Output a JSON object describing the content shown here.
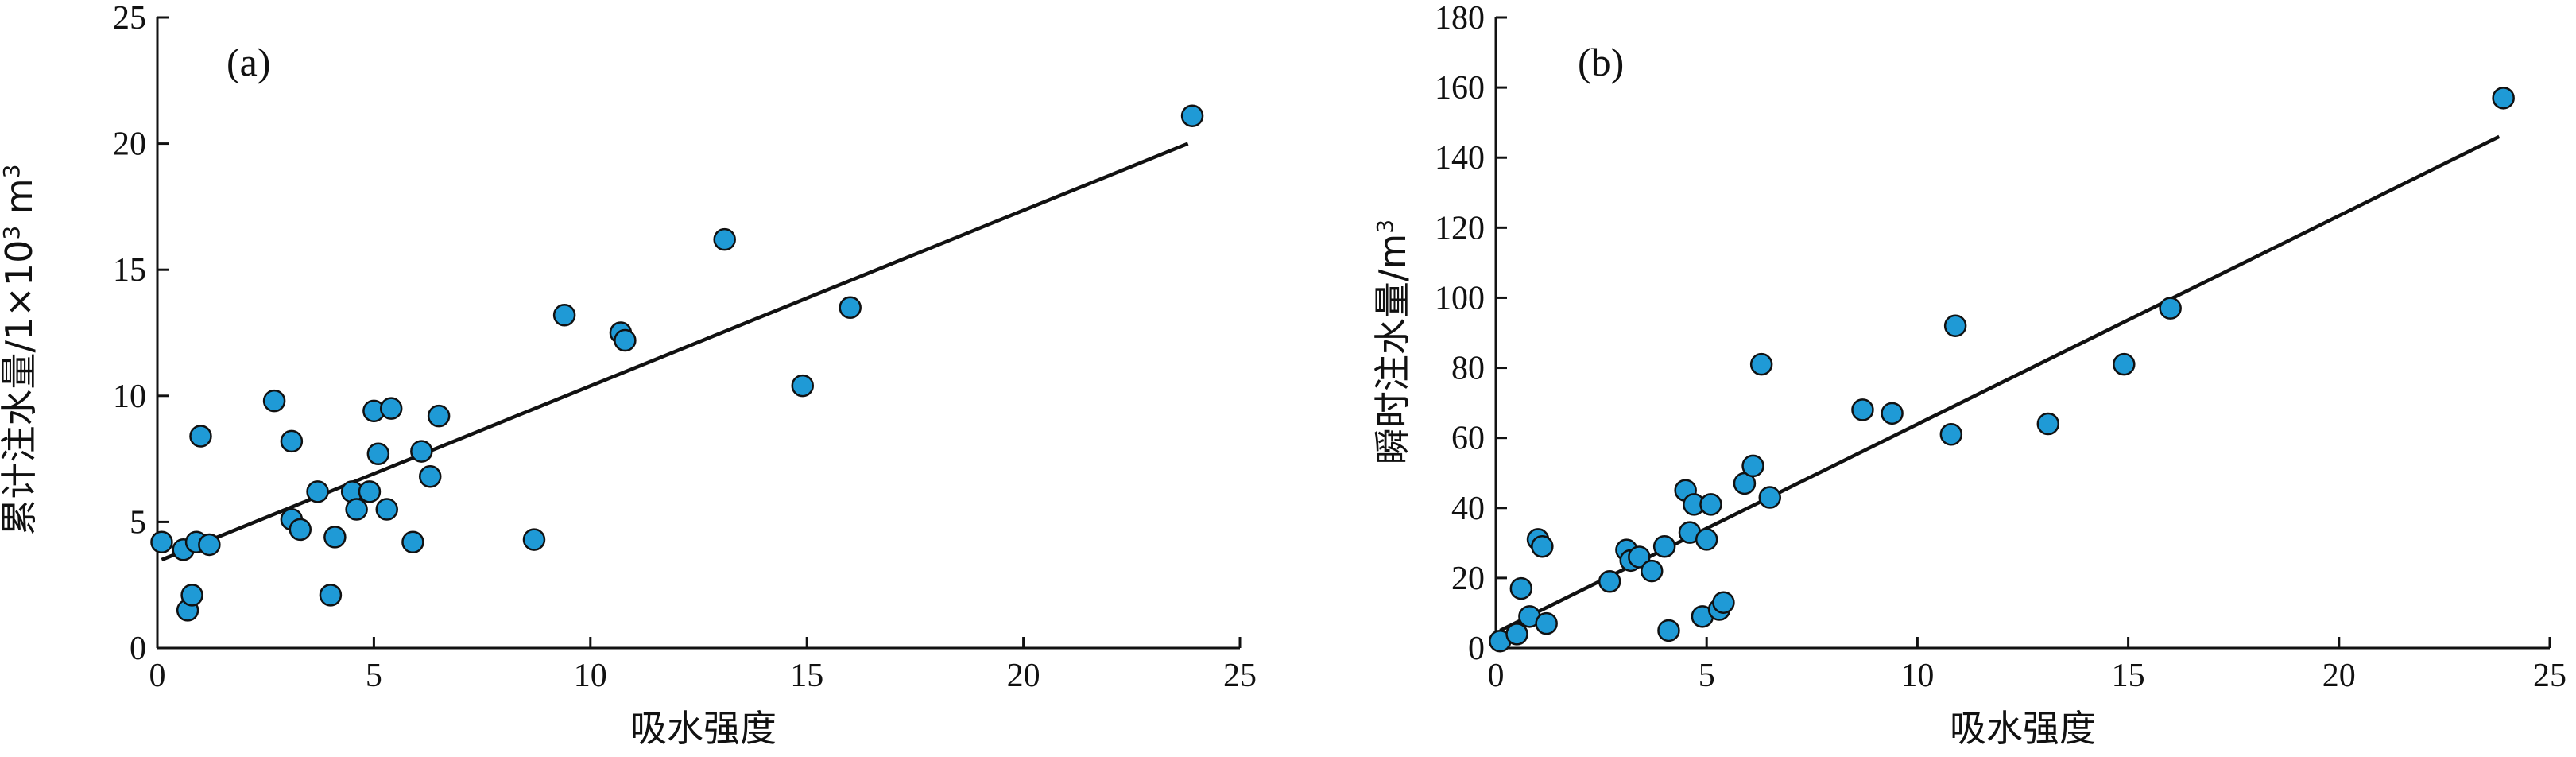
{
  "chart_data": [
    {
      "type": "scatter",
      "panel_label": "(a)",
      "xlabel": "吸水强度",
      "ylabel": "累计注水量/1×10",
      "ylabel_sup": "3",
      "ylabel_unit": " m",
      "ylabel_unit_sup": "3",
      "xlim": [
        0,
        25
      ],
      "ylim": [
        0,
        25
      ],
      "xticks": [
        0,
        5,
        10,
        15,
        20,
        25
      ],
      "yticks": [
        0,
        5,
        10,
        15,
        20,
        25
      ],
      "grid": false,
      "legend": "none",
      "point_color": "#1f9ad6",
      "points": [
        [
          0.1,
          4.2
        ],
        [
          0.6,
          3.9
        ],
        [
          0.7,
          1.5
        ],
        [
          0.8,
          2.1
        ],
        [
          0.9,
          4.2
        ],
        [
          1.0,
          8.4
        ],
        [
          1.2,
          4.1
        ],
        [
          2.7,
          9.8
        ],
        [
          3.1,
          8.2
        ],
        [
          3.1,
          5.1
        ],
        [
          3.3,
          4.7
        ],
        [
          3.7,
          6.2
        ],
        [
          4.0,
          2.1
        ],
        [
          4.1,
          4.4
        ],
        [
          4.5,
          6.2
        ],
        [
          4.6,
          5.5
        ],
        [
          4.9,
          6.2
        ],
        [
          5.0,
          9.4
        ],
        [
          5.1,
          7.7
        ],
        [
          5.3,
          5.5
        ],
        [
          5.4,
          9.5
        ],
        [
          5.9,
          4.2
        ],
        [
          6.1,
          7.8
        ],
        [
          6.3,
          6.8
        ],
        [
          6.5,
          9.2
        ],
        [
          8.7,
          4.3
        ],
        [
          9.4,
          13.2
        ],
        [
          10.7,
          12.5
        ],
        [
          10.8,
          12.2
        ],
        [
          13.1,
          16.2
        ],
        [
          14.9,
          10.4
        ],
        [
          16.0,
          13.5
        ],
        [
          23.9,
          21.1
        ]
      ],
      "fit_line": {
        "x": [
          0.1,
          23.8
        ],
        "y": [
          3.5,
          20.0
        ]
      }
    },
    {
      "type": "scatter",
      "panel_label": "(b)",
      "xlabel": "吸水强度",
      "ylabel": "瞬时注水量/m",
      "ylabel_sup": "3",
      "xlim": [
        0,
        25
      ],
      "ylim": [
        0,
        180
      ],
      "xticks": [
        0,
        5,
        10,
        15,
        20,
        25
      ],
      "yticks": [
        0,
        20,
        40,
        60,
        80,
        100,
        120,
        140,
        160,
        180
      ],
      "grid": false,
      "legend": "none",
      "point_color": "#1f9ad6",
      "points": [
        [
          0.1,
          2
        ],
        [
          0.5,
          4
        ],
        [
          0.6,
          17
        ],
        [
          0.8,
          9
        ],
        [
          1.0,
          31
        ],
        [
          1.1,
          29
        ],
        [
          1.2,
          7
        ],
        [
          2.7,
          19
        ],
        [
          3.1,
          28
        ],
        [
          3.2,
          25
        ],
        [
          3.4,
          26
        ],
        [
          3.7,
          22
        ],
        [
          4.0,
          29
        ],
        [
          4.1,
          5
        ],
        [
          4.5,
          45
        ],
        [
          4.6,
          33
        ],
        [
          4.7,
          41
        ],
        [
          4.9,
          9
        ],
        [
          5.0,
          31
        ],
        [
          5.1,
          41
        ],
        [
          5.3,
          11
        ],
        [
          5.4,
          13
        ],
        [
          5.9,
          47
        ],
        [
          6.1,
          52
        ],
        [
          6.3,
          81
        ],
        [
          6.5,
          43
        ],
        [
          8.7,
          68
        ],
        [
          9.4,
          67
        ],
        [
          10.8,
          61
        ],
        [
          10.9,
          92
        ],
        [
          13.1,
          64
        ],
        [
          14.9,
          81
        ],
        [
          16.0,
          97
        ],
        [
          23.9,
          157
        ]
      ],
      "fit_line": {
        "x": [
          0.1,
          23.8
        ],
        "y": [
          5,
          146
        ]
      }
    }
  ]
}
